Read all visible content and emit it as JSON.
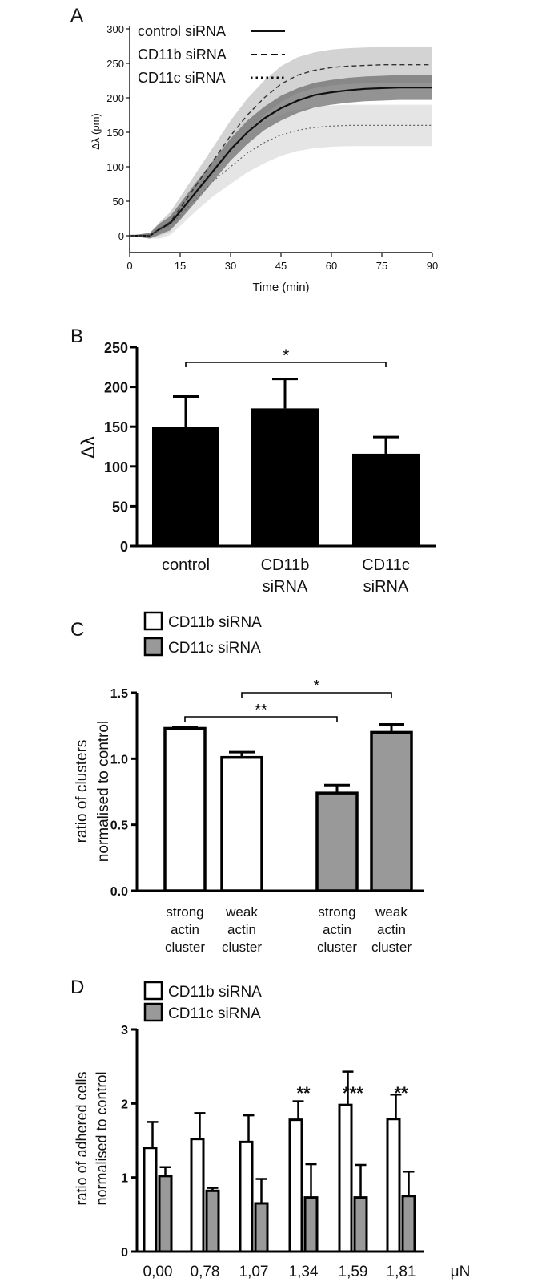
{
  "chart_data": [
    {
      "panel": "A",
      "type": "line",
      "xlabel": "Time (min)",
      "ylabel": "Δλ (pm)",
      "xlim": [
        0,
        90
      ],
      "ylim": [
        0,
        300
      ],
      "xticks": [
        0,
        15,
        30,
        45,
        60,
        75,
        90
      ],
      "yticks": [
        0,
        50,
        100,
        150,
        200,
        250,
        300
      ],
      "x": [
        0,
        6,
        9,
        12,
        15,
        20,
        25,
        30,
        35,
        40,
        45,
        50,
        55,
        60,
        65,
        70,
        75,
        80,
        85,
        90
      ],
      "series": [
        {
          "name": "control siRNA",
          "line": "solid",
          "values": [
            0,
            0,
            10,
            18,
            35,
            65,
            95,
            125,
            150,
            170,
            185,
            196,
            204,
            208,
            211,
            213,
            214,
            215,
            215,
            215
          ],
          "band": [
            0,
            4,
            8,
            10,
            12,
            14,
            15,
            16,
            17,
            17,
            18,
            18,
            18,
            18,
            18,
            18,
            18,
            18,
            18,
            18
          ]
        },
        {
          "name": "CD11b siRNA",
          "line": "dashed",
          "values": [
            0,
            0,
            10,
            20,
            40,
            75,
            110,
            145,
            175,
            200,
            220,
            233,
            240,
            244,
            246,
            247,
            248,
            248,
            248,
            248
          ],
          "band": [
            0,
            4,
            10,
            14,
            16,
            18,
            20,
            22,
            24,
            25,
            26,
            26,
            26,
            26,
            26,
            26,
            26,
            26,
            26,
            26
          ]
        },
        {
          "name": "CD11c siRNA",
          "line": "dotted",
          "values": [
            0,
            0,
            8,
            15,
            30,
            55,
            80,
            100,
            120,
            135,
            146,
            153,
            157,
            159,
            160,
            160,
            160,
            160,
            160,
            160
          ],
          "band": [
            0,
            4,
            12,
            14,
            16,
            18,
            22,
            25,
            28,
            30,
            30,
            30,
            30,
            30,
            30,
            30,
            30,
            30,
            30,
            30
          ]
        }
      ]
    },
    {
      "panel": "B",
      "type": "bar",
      "ylabel": "Δλ",
      "ylim": [
        0,
        250
      ],
      "yticks": [
        0,
        50,
        100,
        150,
        200,
        250
      ],
      "categories": [
        [
          "control"
        ],
        [
          "CD11b",
          "siRNA"
        ],
        [
          "CD11c",
          "siRNA"
        ]
      ],
      "values": [
        150,
        173,
        116
      ],
      "errors": [
        38,
        37,
        21
      ],
      "significance": [
        {
          "from": 0,
          "to": 2,
          "label": "*"
        }
      ]
    },
    {
      "panel": "C",
      "type": "bar",
      "ylabel": [
        "ratio of clusters",
        "normalised to control"
      ],
      "ylim": [
        0,
        1.5
      ],
      "yticks": [
        "0.0",
        "0.5",
        "1.0",
        "1.5"
      ],
      "legend": [
        {
          "name": "CD11b siRNA",
          "color": "#ffffff"
        },
        {
          "name": "CD11c siRNA",
          "color": "#999999"
        }
      ],
      "categories": [
        [
          "strong",
          "actin",
          "cluster"
        ],
        [
          "weak",
          "actin",
          "cluster"
        ],
        [
          "strong",
          "actin",
          "cluster"
        ],
        [
          "weak",
          "actin",
          "cluster"
        ]
      ],
      "bar_series": [
        0,
        0,
        1,
        1
      ],
      "values": [
        1.23,
        1.01,
        0.74,
        1.2
      ],
      "errors": [
        0.01,
        0.04,
        0.06,
        0.06
      ],
      "significance": [
        {
          "from": 0,
          "to": 2,
          "label": "**"
        },
        {
          "from": 1,
          "to": 3,
          "label": "*"
        }
      ]
    },
    {
      "panel": "D",
      "type": "bar",
      "ylabel": [
        "ratio of adhered cells",
        "normalised to control"
      ],
      "ylim": [
        0,
        3
      ],
      "yticks": [
        "0",
        "1",
        "2",
        "3"
      ],
      "xunit": "μN",
      "legend": [
        {
          "name": "CD11b siRNA",
          "color": "#ffffff"
        },
        {
          "name": "CD11c siRNA",
          "color": "#999999"
        }
      ],
      "categories": [
        "0,00",
        "0,78",
        "1,07",
        "1,34",
        "1,59",
        "1,81"
      ],
      "series": [
        {
          "name": "CD11b siRNA",
          "values": [
            1.4,
            1.52,
            1.48,
            1.78,
            1.98,
            1.79
          ],
          "errors": [
            0.35,
            0.35,
            0.36,
            0.25,
            0.45,
            0.33
          ]
        },
        {
          "name": "CD11c siRNA",
          "values": [
            1.02,
            0.82,
            0.65,
            0.73,
            0.73,
            0.75
          ],
          "errors": [
            0.12,
            0.04,
            0.33,
            0.45,
            0.44,
            0.33
          ]
        }
      ],
      "significance_labels": [
        "",
        "",
        "",
        "**",
        "***",
        "**"
      ]
    }
  ],
  "panel_labels": [
    "A",
    "B",
    "C",
    "D"
  ]
}
